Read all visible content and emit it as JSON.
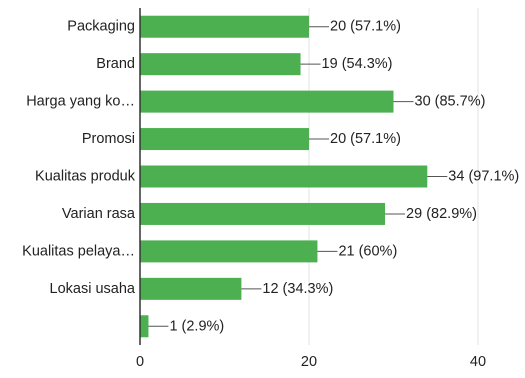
{
  "chart_data": {
    "type": "bar",
    "orientation": "horizontal",
    "categories": [
      "Packaging",
      "Brand",
      "Harga yang ko…",
      "Promosi",
      "Kualitas produk",
      "Varian rasa",
      "Kualitas pelaya…",
      "Lokasi usaha",
      ""
    ],
    "values": [
      20,
      19,
      30,
      20,
      34,
      29,
      21,
      12,
      1
    ],
    "data_labels": [
      "20 (57.1%)",
      "19 (54.3%)",
      "30 (85.7%)",
      "20 (57.1%)",
      "34 (97.1%)",
      "29 (82.9%)",
      "21 (60%)",
      "12 (34.3%)",
      "1 (2.9%)"
    ],
    "x_ticks": [
      0,
      20,
      40
    ],
    "xlim": [
      0,
      40
    ],
    "grid": true,
    "bar_color": "#4caf50",
    "title": "",
    "xlabel": "",
    "ylabel": ""
  }
}
